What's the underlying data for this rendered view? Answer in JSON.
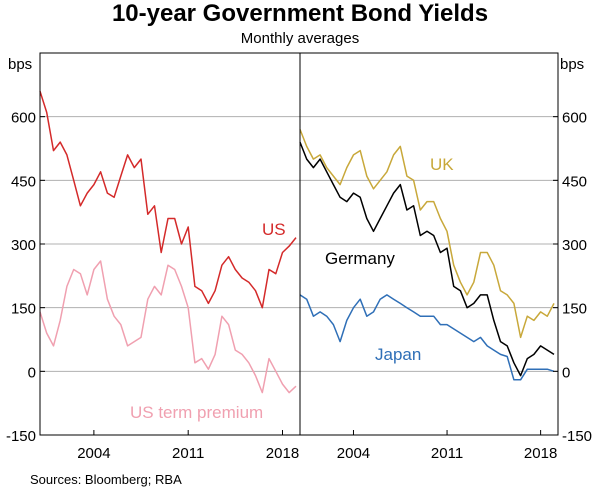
{
  "title": "10-year Government Bond Yields",
  "subtitle": "Monthly averages",
  "source": "Sources: Bloomberg; RBA",
  "colors": {
    "us": "#d42a2a",
    "us_term": "#f0a0b0",
    "uk": "#c8a83a",
    "germany": "#000000",
    "japan": "#2f6fb7",
    "grid": "#b0b0b0"
  },
  "chart_data": [
    {
      "type": "line",
      "ylabel": "bps",
      "ylim": [
        -150,
        750
      ],
      "yticks": [
        -150,
        0,
        150,
        300,
        450,
        600
      ],
      "xlim": [
        2000.0,
        2019.3
      ],
      "xticks": [
        2004,
        2011,
        2018
      ],
      "grid": true,
      "series": [
        {
          "name": "US",
          "color": "#d42a2a",
          "x": [
            2000.0,
            2000.5,
            2001.0,
            2001.5,
            2002.0,
            2002.5,
            2003.0,
            2003.5,
            2004.0,
            2004.5,
            2005.0,
            2005.5,
            2006.0,
            2006.5,
            2007.0,
            2007.5,
            2008.0,
            2008.5,
            2009.0,
            2009.5,
            2010.0,
            2010.5,
            2011.0,
            2011.5,
            2012.0,
            2012.5,
            2013.0,
            2013.5,
            2014.0,
            2014.5,
            2015.0,
            2015.5,
            2016.0,
            2016.5,
            2017.0,
            2017.5,
            2018.0,
            2018.5,
            2019.0
          ],
          "y": [
            660,
            610,
            520,
            540,
            510,
            450,
            390,
            420,
            440,
            470,
            420,
            410,
            460,
            510,
            480,
            500,
            370,
            390,
            280,
            360,
            360,
            300,
            340,
            200,
            190,
            160,
            190,
            250,
            270,
            240,
            220,
            210,
            190,
            150,
            240,
            230,
            280,
            295,
            315
          ]
        },
        {
          "name": "US term premium",
          "color": "#f0a0b0",
          "x": [
            2000.0,
            2000.5,
            2001.0,
            2001.5,
            2002.0,
            2002.5,
            2003.0,
            2003.5,
            2004.0,
            2004.5,
            2005.0,
            2005.5,
            2006.0,
            2006.5,
            2007.0,
            2007.5,
            2008.0,
            2008.5,
            2009.0,
            2009.5,
            2010.0,
            2010.5,
            2011.0,
            2011.5,
            2012.0,
            2012.5,
            2013.0,
            2013.5,
            2014.0,
            2014.5,
            2015.0,
            2015.5,
            2016.0,
            2016.5,
            2017.0,
            2017.5,
            2018.0,
            2018.5,
            2019.0
          ],
          "y": [
            140,
            90,
            60,
            120,
            200,
            240,
            230,
            180,
            240,
            260,
            170,
            130,
            110,
            60,
            70,
            80,
            170,
            200,
            180,
            250,
            240,
            200,
            150,
            20,
            30,
            5,
            40,
            130,
            110,
            50,
            40,
            20,
            -10,
            -50,
            30,
            0,
            -30,
            -50,
            -35
          ]
        },
        {
          "name": "UK",
          "color": "#c8a83a",
          "x": [
            2000.0,
            2000.5,
            2001.0,
            2001.5,
            2002.0,
            2002.5,
            2003.0,
            2003.5,
            2004.0,
            2004.5,
            2005.0,
            2005.5,
            2006.0,
            2006.5,
            2007.0,
            2007.5,
            2008.0,
            2008.5,
            2009.0,
            2009.5,
            2010.0,
            2010.5,
            2011.0,
            2011.5,
            2012.0,
            2012.5,
            2013.0,
            2013.5,
            2014.0,
            2014.5,
            2015.0,
            2015.5,
            2016.0,
            2016.5,
            2017.0,
            2017.5,
            2018.0,
            2018.5,
            2019.0
          ],
          "y": [
            570,
            530,
            500,
            510,
            480,
            460,
            440,
            480,
            510,
            520,
            460,
            430,
            450,
            470,
            510,
            530,
            460,
            450,
            380,
            400,
            400,
            360,
            330,
            250,
            210,
            180,
            210,
            280,
            280,
            250,
            190,
            180,
            160,
            80,
            130,
            120,
            140,
            130,
            160
          ]
        },
        {
          "name": "Germany",
          "color": "#000000",
          "x": [
            2000.0,
            2000.5,
            2001.0,
            2001.5,
            2002.0,
            2002.5,
            2003.0,
            2003.5,
            2004.0,
            2004.5,
            2005.0,
            2005.5,
            2006.0,
            2006.5,
            2007.0,
            2007.5,
            2008.0,
            2008.5,
            2009.0,
            2009.5,
            2010.0,
            2010.5,
            2011.0,
            2011.5,
            2012.0,
            2012.5,
            2013.0,
            2013.5,
            2014.0,
            2014.5,
            2015.0,
            2015.5,
            2016.0,
            2016.5,
            2017.0,
            2017.5,
            2018.0,
            2018.5,
            2019.0
          ],
          "y": [
            540,
            500,
            480,
            500,
            470,
            440,
            410,
            400,
            420,
            410,
            360,
            330,
            360,
            390,
            420,
            440,
            380,
            390,
            320,
            330,
            320,
            280,
            290,
            200,
            190,
            150,
            160,
            180,
            180,
            120,
            70,
            60,
            20,
            -10,
            30,
            40,
            60,
            50,
            40
          ]
        },
        {
          "name": "Japan",
          "color": "#2f6fb7",
          "x": [
            2000.0,
            2000.5,
            2001.0,
            2001.5,
            2002.0,
            2002.5,
            2003.0,
            2003.5,
            2004.0,
            2004.5,
            2005.0,
            2005.5,
            2006.0,
            2006.5,
            2007.0,
            2007.5,
            2008.0,
            2008.5,
            2009.0,
            2009.5,
            2010.0,
            2010.5,
            2011.0,
            2011.5,
            2012.0,
            2012.5,
            2013.0,
            2013.5,
            2014.0,
            2014.5,
            2015.0,
            2015.5,
            2016.0,
            2016.5,
            2017.0,
            2017.5,
            2018.0,
            2018.5,
            2019.0
          ],
          "y": [
            180,
            170,
            130,
            140,
            130,
            110,
            70,
            120,
            150,
            170,
            130,
            140,
            170,
            180,
            170,
            160,
            150,
            140,
            130,
            130,
            130,
            110,
            110,
            100,
            90,
            80,
            70,
            80,
            60,
            50,
            40,
            35,
            -20,
            -20,
            5,
            5,
            5,
            5,
            0
          ]
        }
      ]
    }
  ],
  "labels": {
    "left_ylabel": "bps",
    "right_ylabel": "bps",
    "us": "US",
    "us_term": "US term premium",
    "uk": "UK",
    "germany": "Germany",
    "japan": "Japan",
    "yticks": [
      "-150",
      "0",
      "150",
      "300",
      "450",
      "600"
    ],
    "xticks": [
      "2004",
      "2011",
      "2018"
    ]
  }
}
